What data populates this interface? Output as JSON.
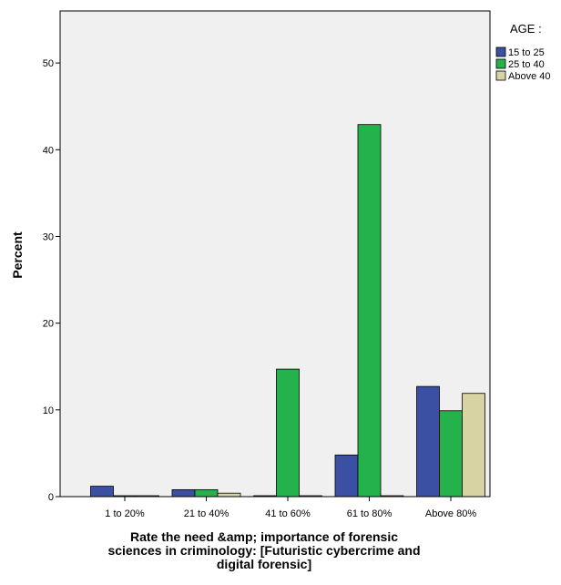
{
  "chart_data": {
    "type": "bar",
    "categories": [
      "1 to 20%",
      "21 to 40%",
      "41 to 60%",
      "61 to 80%",
      "Above 80%"
    ],
    "series": [
      {
        "name": "15 to 25",
        "values": [
          1.2,
          0.8,
          0.0,
          4.8,
          12.7
        ],
        "color": "#3b4fa3"
      },
      {
        "name": "25 to 40",
        "values": [
          0.0,
          0.8,
          14.7,
          42.9,
          9.9
        ],
        "color": "#23b24b"
      },
      {
        "name": "Above 40",
        "values": [
          0.0,
          0.4,
          0.0,
          0.0,
          11.9
        ],
        "color": "#d7d3a3"
      }
    ],
    "ylabel": "Percent",
    "xlabel_lines": [
      "Rate the need &amp; importance of forensic",
      "sciences in criminology:  [Futuristic  cybercrime and",
      "digital forensic]"
    ],
    "legend_title": "AGE :",
    "ylim": [
      0,
      56
    ],
    "yticks": [
      0,
      10,
      20,
      30,
      40,
      50
    ],
    "grid": false,
    "legend": "top-right outside"
  }
}
